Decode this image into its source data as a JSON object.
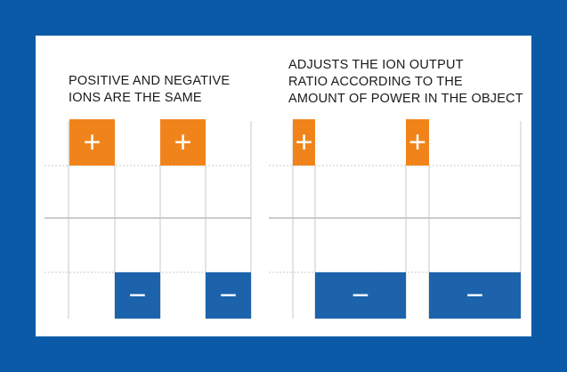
{
  "left": {
    "caption_lines": [
      "POSITIVE AND NEGATIVE",
      "IONS ARE THE SAME"
    ]
  },
  "right": {
    "caption_lines": [
      "ADJUSTS THE ION OUTPUT",
      "RATIO ACCORDING TO THE",
      "AMOUNT OF POWER IN THE OBJECT"
    ]
  },
  "symbols": {
    "positive": "+",
    "negative": "−"
  },
  "colors": {
    "background": "#0a5aa8",
    "panel": "#ffffff",
    "positive": "#f0841a",
    "negative": "#1c63ab",
    "symbol": "#ffffff"
  }
}
